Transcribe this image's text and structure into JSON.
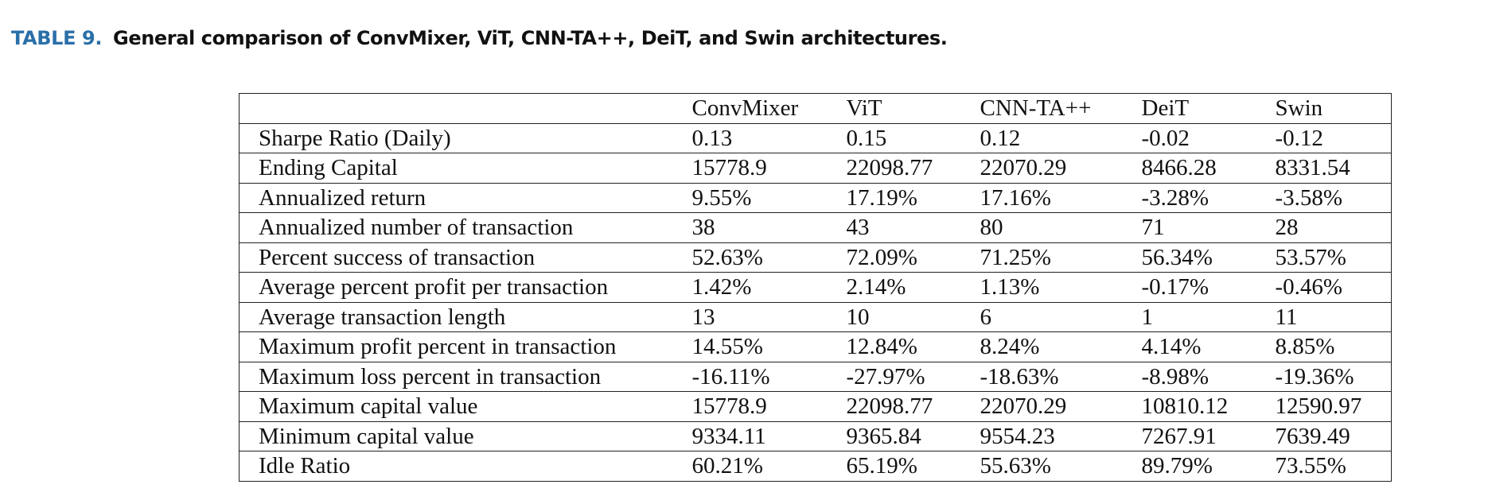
{
  "caption": {
    "label": "TABLE 9.",
    "text": "General comparison of ConvMixer, ViT, CNN-TA++, DeiT, and Swin architectures."
  },
  "table": {
    "columns": [
      "",
      "ConvMixer",
      "ViT",
      "CNN-TA++",
      "DeiT",
      "Swin"
    ],
    "rows": [
      [
        "Sharpe Ratio (Daily)",
        "0.13",
        "0.15",
        "0.12",
        "-0.02",
        "-0.12"
      ],
      [
        "Ending Capital",
        "15778.9",
        "22098.77",
        "22070.29",
        "8466.28",
        "8331.54"
      ],
      [
        "Annualized return",
        "9.55%",
        "17.19%",
        "17.16%",
        "-3.28%",
        "-3.58%"
      ],
      [
        "Annualized number of transaction",
        "38",
        "43",
        "80",
        "71",
        "28"
      ],
      [
        "Percent success of transaction",
        "52.63%",
        "72.09%",
        "71.25%",
        "56.34%",
        "53.57%"
      ],
      [
        "Average percent profit per transaction",
        "1.42%",
        "2.14%",
        "1.13%",
        "-0.17%",
        "-0.46%"
      ],
      [
        "Average transaction length",
        "13",
        "10",
        "6",
        "1",
        "11"
      ],
      [
        "Maximum profit percent in transaction",
        "14.55%",
        "12.84%",
        "8.24%",
        "4.14%",
        "8.85%"
      ],
      [
        "Maximum loss percent in transaction",
        "-16.11%",
        "-27.97%",
        "-18.63%",
        "-8.98%",
        "-19.36%"
      ],
      [
        "Maximum capital value",
        "15778.9",
        "22098.77",
        "22070.29",
        "10810.12",
        "12590.97"
      ],
      [
        "Minimum capital value",
        "9334.11",
        "9365.84",
        "9554.23",
        "7267.91",
        "7639.49"
      ],
      [
        "Idle Ratio",
        "60.21%",
        "65.19%",
        "55.63%",
        "89.79%",
        "73.55%"
      ]
    ]
  }
}
